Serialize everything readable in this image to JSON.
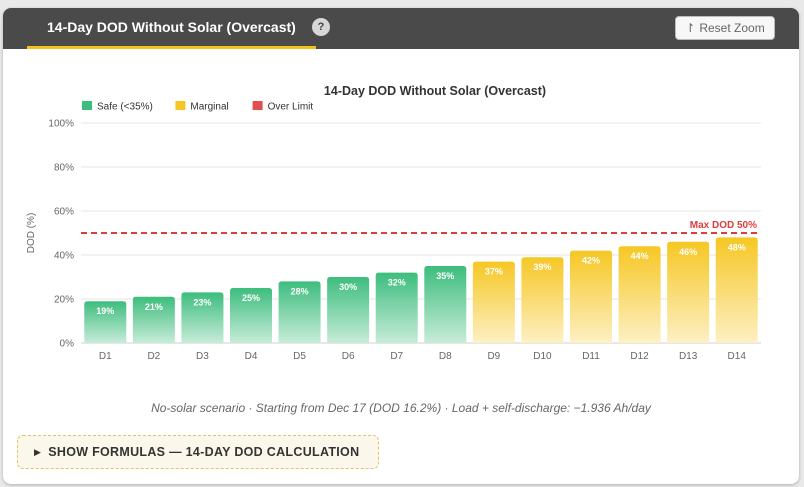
{
  "tab": {
    "title": "14-Day DOD Without Solar (Overcast)",
    "help": "?"
  },
  "toolbar": {
    "reset_zoom": "Reset Zoom",
    "reset_icon": "↾"
  },
  "colors": {
    "header_bg": "#4a4a4a",
    "tab_underline": "#f2c21b",
    "safe": "#3dbd7d",
    "marginal": "#f6c724",
    "over_limit": "#e04f4f",
    "limit_line": "#e03b3b"
  },
  "chart_data": {
    "type": "bar",
    "title": "14-Day DOD Without Solar (Overcast)",
    "ylabel": "DOD (%)",
    "xlabel": "",
    "ylim": [
      0,
      100
    ],
    "yticks": [
      "0%",
      "20%",
      "40%",
      "60%",
      "80%",
      "100%"
    ],
    "ytick_values": [
      0,
      20,
      40,
      60,
      80,
      100
    ],
    "grid": true,
    "legend_position": "top-left",
    "legend": [
      {
        "label": "Safe (<35%)",
        "color": "#3dbd7d"
      },
      {
        "label": "Marginal",
        "color": "#f6c724"
      },
      {
        "label": "Over Limit",
        "color": "#e04f4f"
      }
    ],
    "categories": [
      "D1",
      "D2",
      "D3",
      "D4",
      "D5",
      "D6",
      "D7",
      "D8",
      "D9",
      "D10",
      "D11",
      "D12",
      "D13",
      "D14"
    ],
    "values": [
      19,
      21,
      23,
      25,
      28,
      30,
      32,
      35,
      37,
      39,
      42,
      44,
      46,
      48
    ],
    "labels": [
      "19%",
      "21%",
      "23%",
      "25%",
      "28%",
      "30%",
      "32%",
      "35%",
      "37%",
      "39%",
      "42%",
      "44%",
      "46%",
      "48%"
    ],
    "status": [
      "safe",
      "safe",
      "safe",
      "safe",
      "safe",
      "safe",
      "safe",
      "safe",
      "marginal",
      "marginal",
      "marginal",
      "marginal",
      "marginal",
      "marginal"
    ],
    "limit": {
      "value": 50,
      "label": "Max DOD 50%"
    }
  },
  "caption": "No-solar scenario · Starting from Dec 17 (DOD 16.2%) · Load + self-discharge: −1.936 Ah/day",
  "formulas": {
    "arrow": "▶",
    "label": "SHOW FORMULAS — 14-DAY DOD CALCULATION"
  }
}
